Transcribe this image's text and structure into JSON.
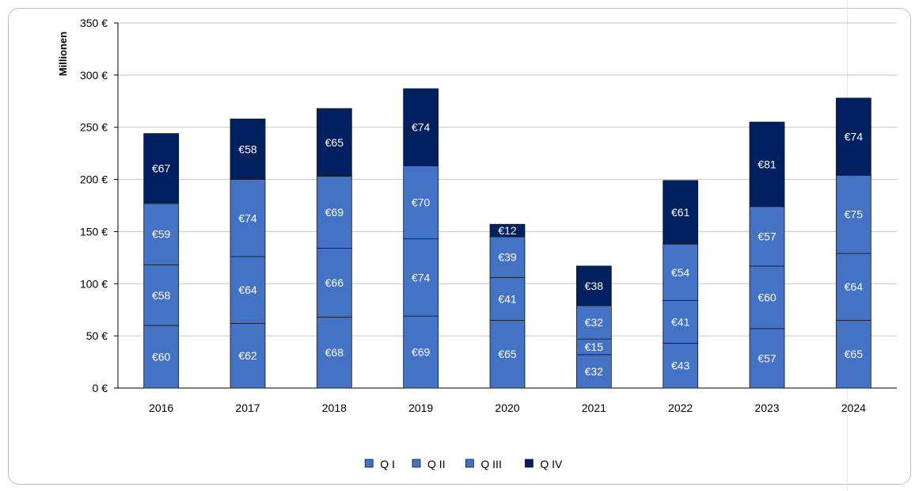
{
  "chart_data": {
    "type": "bar",
    "stacked": true,
    "title": "",
    "xlabel": "",
    "ylabel": "Millionen",
    "ylim": [
      0,
      350
    ],
    "y_ticks": [
      0,
      50,
      100,
      150,
      200,
      250,
      300,
      350
    ],
    "y_tick_labels": [
      "0 €",
      "50 €",
      "100 €",
      "150 €",
      "200 €",
      "250 €",
      "300 €",
      "350 €"
    ],
    "grid": true,
    "legend_position": "bottom",
    "categories": [
      "2016",
      "2017",
      "2018",
      "2019",
      "2020",
      "2021",
      "2022",
      "2023",
      "2024"
    ],
    "series": [
      {
        "name": "Q I",
        "color": "#4472c4",
        "values": [
          60,
          62,
          68,
          69,
          65,
          32,
          43,
          57,
          65
        ],
        "labels": [
          "€60",
          "€62",
          "€68",
          "€69",
          "€65",
          "€32",
          "€43",
          "€57",
          "€65"
        ]
      },
      {
        "name": "Q II",
        "color": "#4472c4",
        "values": [
          58,
          64,
          66,
          74,
          41,
          15,
          41,
          60,
          64
        ],
        "labels": [
          "€58",
          "€64",
          "€66",
          "€74",
          "€41",
          "€15",
          "€41",
          "€60",
          "€64"
        ]
      },
      {
        "name": "Q III",
        "color": "#4472c4",
        "values": [
          59,
          74,
          69,
          70,
          39,
          32,
          54,
          57,
          75
        ],
        "labels": [
          "€59",
          "€74",
          "€69",
          "€70",
          "€39",
          "€32",
          "€54",
          "€57",
          "€75"
        ]
      },
      {
        "name": "Q IV",
        "color": "#002060",
        "values": [
          67,
          58,
          65,
          74,
          12,
          38,
          61,
          81,
          74
        ],
        "labels": [
          "€67",
          "€58",
          "€65",
          "€74",
          "€12",
          "€38",
          "€61",
          "€81",
          "€74"
        ]
      }
    ]
  }
}
